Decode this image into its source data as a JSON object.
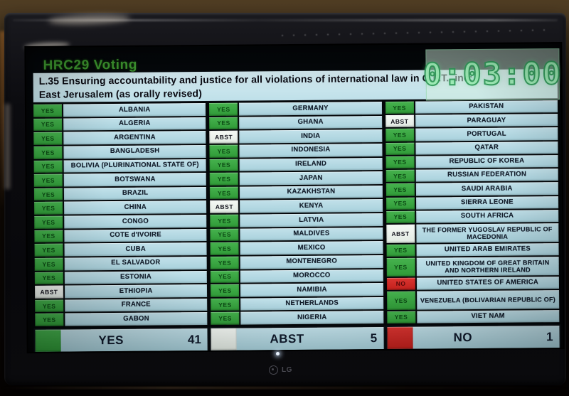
{
  "screen": {
    "title": "HRC29 Voting",
    "resolution": {
      "line1": "L.35 Ensuring accountability and justice for all violations of international law in O.P.T., inc:",
      "line2": "East Jerusalem (as orally revised)"
    },
    "timer": "0:03:00"
  },
  "board": {
    "columns": [
      {
        "entries": [
          {
            "country": "ALBANIA",
            "vote": "YES"
          },
          {
            "country": "ALGERIA",
            "vote": "YES"
          },
          {
            "country": "ARGENTINA",
            "vote": "YES"
          },
          {
            "country": "BANGLADESH",
            "vote": "YES"
          },
          {
            "country": "BOLIVIA (PLURINATIONAL STATE OF)",
            "vote": "YES"
          },
          {
            "country": "BOTSWANA",
            "vote": "YES"
          },
          {
            "country": "BRAZIL",
            "vote": "YES"
          },
          {
            "country": "CHINA",
            "vote": "YES"
          },
          {
            "country": "CONGO",
            "vote": "YES"
          },
          {
            "country": "COTE d'IVOIRE",
            "vote": "YES"
          },
          {
            "country": "CUBA",
            "vote": "YES"
          },
          {
            "country": "EL SALVADOR",
            "vote": "YES"
          },
          {
            "country": "ESTONIA",
            "vote": "YES"
          },
          {
            "country": "ETHIOPIA",
            "vote": "ABST"
          },
          {
            "country": "FRANCE",
            "vote": "YES"
          },
          {
            "country": "GABON",
            "vote": "YES"
          }
        ]
      },
      {
        "entries": [
          {
            "country": "GERMANY",
            "vote": "YES"
          },
          {
            "country": "GHANA",
            "vote": "YES"
          },
          {
            "country": "INDIA",
            "vote": "ABST"
          },
          {
            "country": "INDONESIA",
            "vote": "YES"
          },
          {
            "country": "IRELAND",
            "vote": "YES"
          },
          {
            "country": "JAPAN",
            "vote": "YES"
          },
          {
            "country": "KAZAKHSTAN",
            "vote": "YES"
          },
          {
            "country": "KENYA",
            "vote": "ABST"
          },
          {
            "country": "LATVIA",
            "vote": "YES"
          },
          {
            "country": "MALDIVES",
            "vote": "YES"
          },
          {
            "country": "MEXICO",
            "vote": "YES"
          },
          {
            "country": "MONTENEGRO",
            "vote": "YES"
          },
          {
            "country": "MOROCCO",
            "vote": "YES"
          },
          {
            "country": "NAMIBIA",
            "vote": "YES"
          },
          {
            "country": "NETHERLANDS",
            "vote": "YES"
          },
          {
            "country": "NIGERIA",
            "vote": "YES"
          }
        ]
      },
      {
        "entries": [
          {
            "country": "PAKISTAN",
            "vote": "YES"
          },
          {
            "country": "PARAGUAY",
            "vote": "ABST"
          },
          {
            "country": "PORTUGAL",
            "vote": "YES"
          },
          {
            "country": "QATAR",
            "vote": "YES"
          },
          {
            "country": "REPUBLIC OF KOREA",
            "vote": "YES"
          },
          {
            "country": "RUSSIAN FEDERATION",
            "vote": "YES"
          },
          {
            "country": "SAUDI ARABIA",
            "vote": "YES"
          },
          {
            "country": "SIERRA LEONE",
            "vote": "YES"
          },
          {
            "country": "SOUTH AFRICA",
            "vote": "YES"
          },
          {
            "country": "THE FORMER YUGOSLAV REPUBLIC OF MACEDONIA",
            "vote": "ABST",
            "lines": 2
          },
          {
            "country": "UNITED ARAB EMIRATES",
            "vote": "YES"
          },
          {
            "country": "UNITED KINGDOM OF GREAT BRITAIN AND NORTHERN IRELAND",
            "vote": "YES",
            "lines": 2
          },
          {
            "country": "UNITED STATES OF AMERICA",
            "vote": "NO"
          },
          {
            "country": "VENEZUELA (BOLIVARIAN REPUBLIC OF)",
            "vote": "YES",
            "lines": 2
          },
          {
            "country": "VIET NAM",
            "vote": "YES"
          }
        ]
      }
    ]
  },
  "summary": {
    "items": [
      {
        "label": "YES",
        "count": "41",
        "vote": "YES"
      },
      {
        "label": "ABST",
        "count": "5",
        "vote": "ABST"
      },
      {
        "label": "NO",
        "count": "1",
        "vote": "NO"
      }
    ]
  },
  "vote_styles": {
    "YES": {
      "bg": "#2f9a37",
      "bg_light": "#46b24e",
      "fg": "#0c4a14"
    },
    "ABST": {
      "bg": "#e2eae3",
      "bg_light": "#f5f9f5",
      "fg": "#12121c"
    },
    "NO": {
      "bg": "#c2201c",
      "bg_light": "#da3531",
      "fg": "#560909"
    }
  },
  "colors": {
    "title_green": "#3f9c31",
    "cell_blue": "#b2d8e2",
    "timer_green": "#9eeeb6",
    "screen_background": "#04070a"
  },
  "tv": {
    "brand": "LG"
  }
}
